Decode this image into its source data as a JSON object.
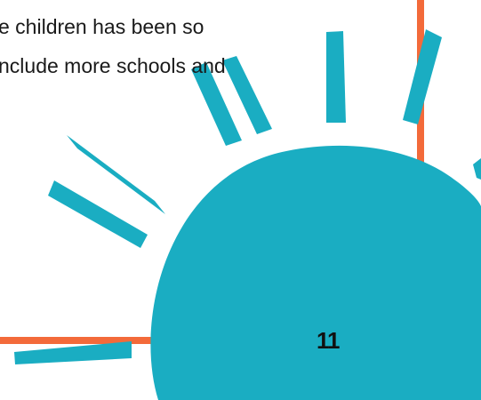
{
  "body": {
    "lines": [
      "e children has been so",
      "nclude more schools and"
    ]
  },
  "page_number": "11",
  "colors": {
    "teal": "#1aadc2",
    "orange": "#f36a3a",
    "text": "#1a1a1a",
    "background": "#ffffff"
  },
  "icons": {
    "sun": "sun-illustration"
  }
}
